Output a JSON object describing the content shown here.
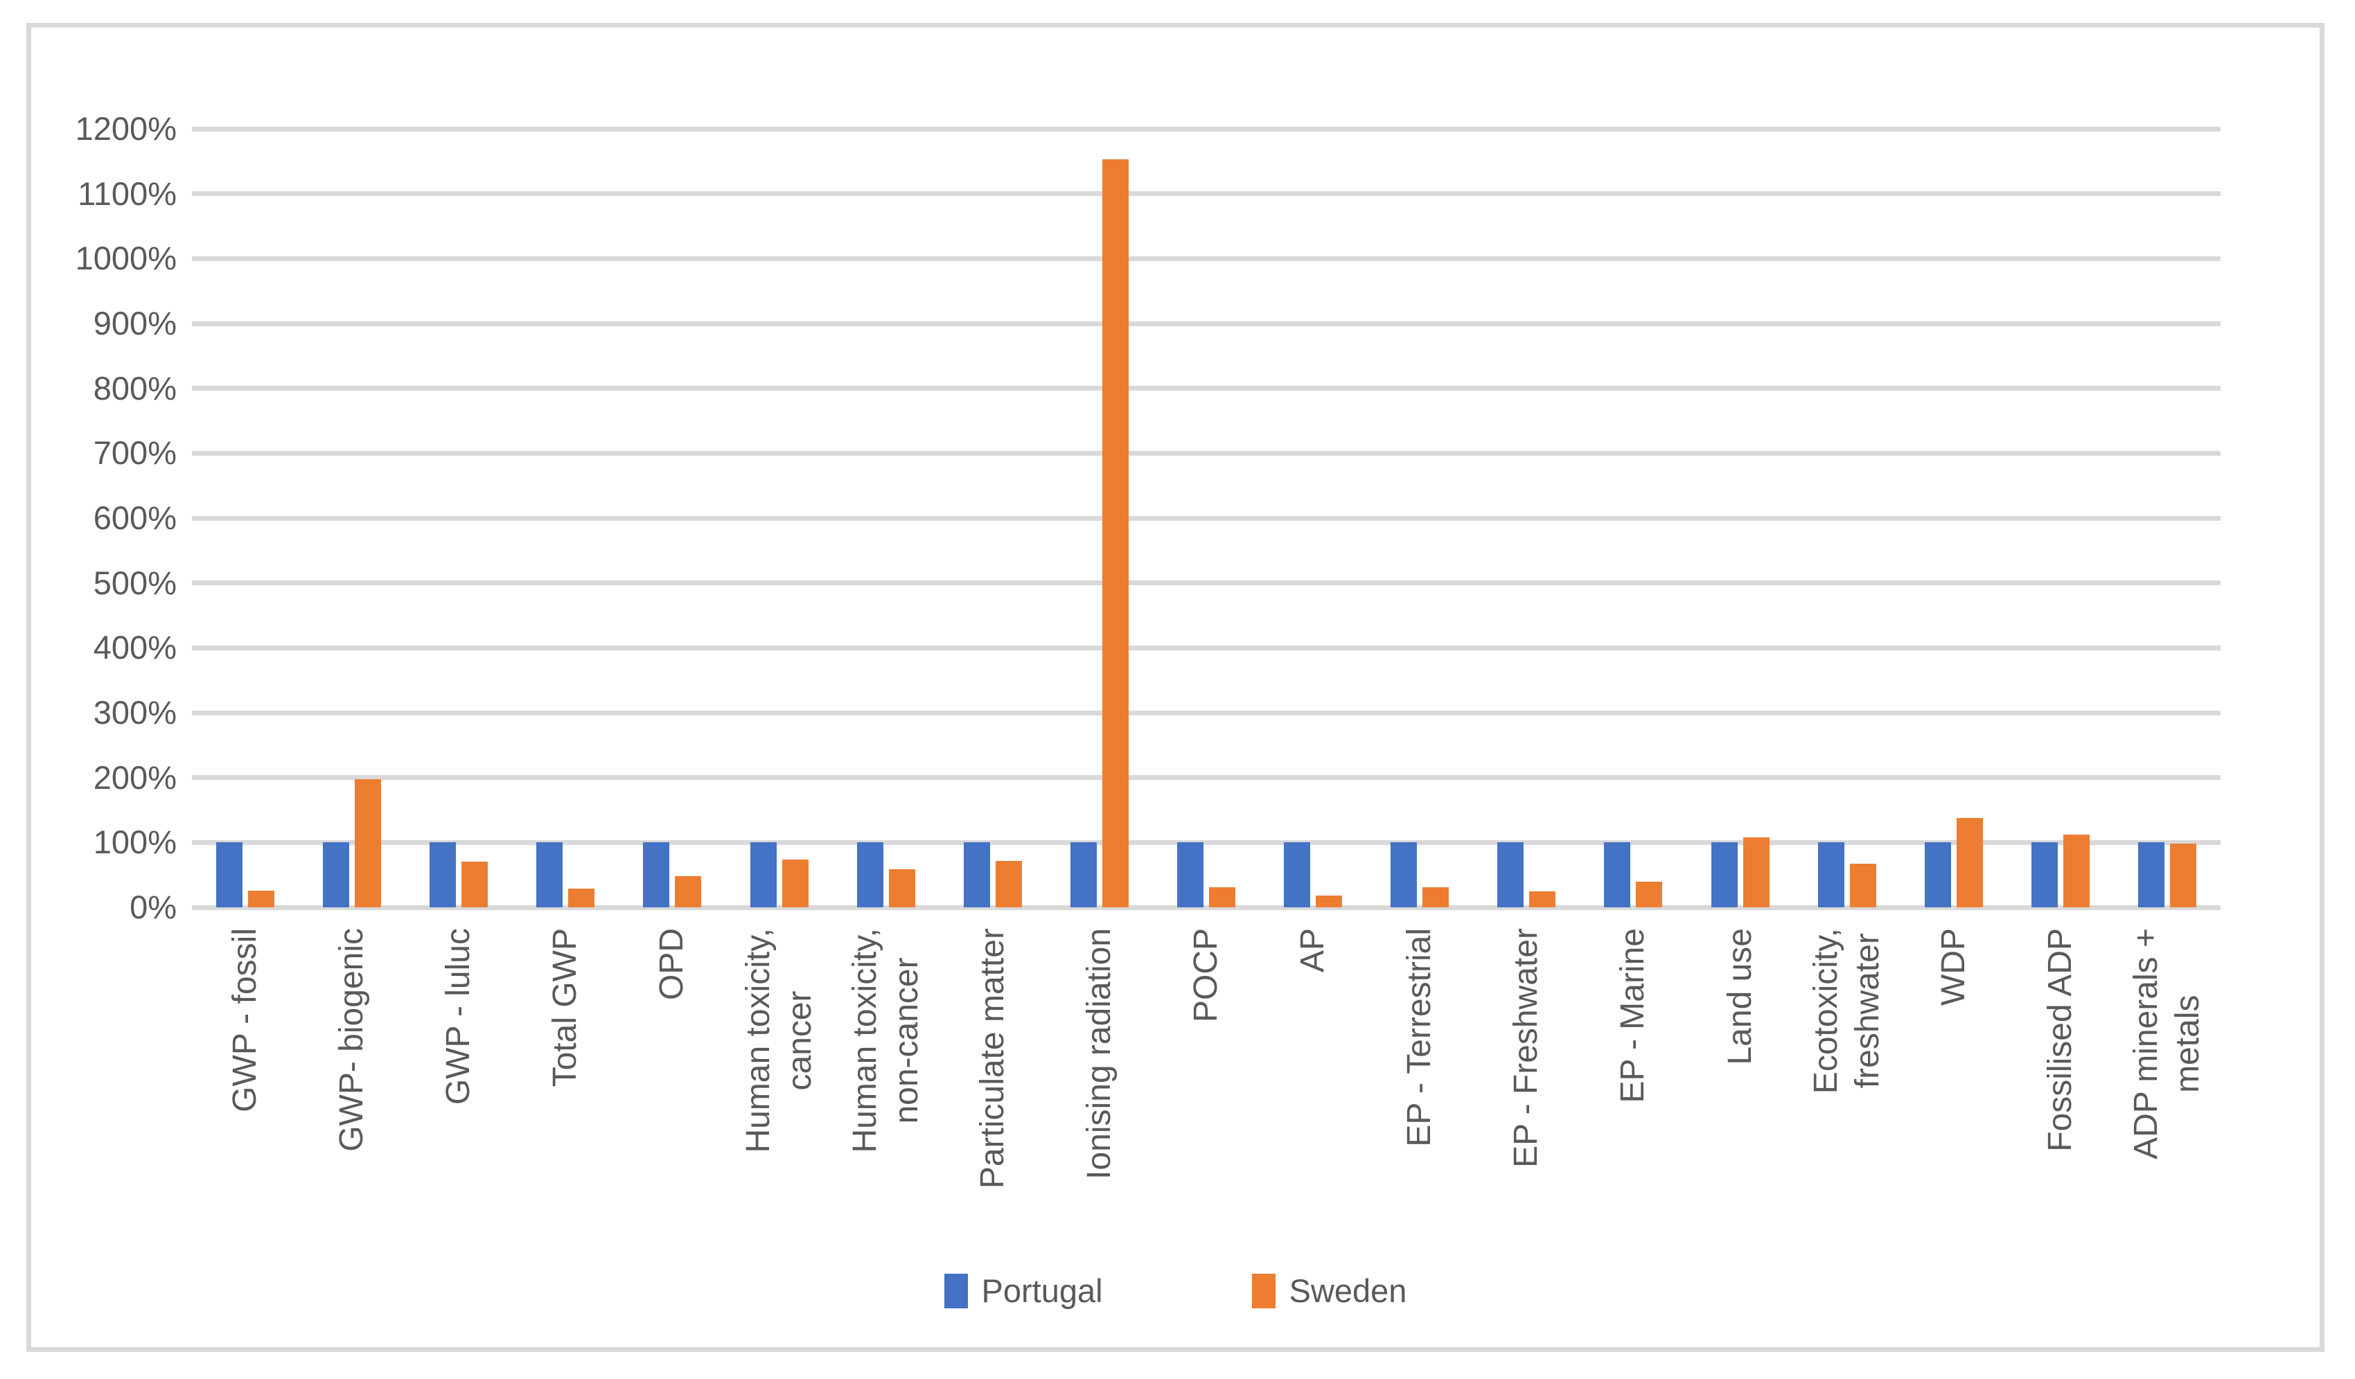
{
  "chart_data": {
    "type": "bar",
    "title": "",
    "xlabel": "",
    "ylabel": "",
    "ylim": [
      0,
      1200
    ],
    "ytick_step": 100,
    "ytick_suffix": "%",
    "grid": true,
    "legend_position": "bottom",
    "categories": [
      "GWP - fossil",
      "GWP- biogenic",
      "GWP - luluc",
      "Total GWP",
      "OPD",
      "Human toxicity,\ncancer",
      "Human toxicity,\nnon-cancer",
      "Particulate matter",
      "Ionising radiation",
      "POCP",
      "AP",
      "EP - Terrestrial",
      "EP - Freshwater",
      "EP - Marine",
      "Land use",
      "Ecotoxicity,\nfreshwater",
      "WDP",
      "Fossilised ADP",
      "ADP minerals +\nmetals"
    ],
    "series": [
      {
        "name": "Portugal",
        "color": "#4472C4",
        "values": [
          100,
          100,
          100,
          100,
          100,
          100,
          100,
          100,
          100,
          100,
          100,
          100,
          100,
          100,
          100,
          100,
          100,
          100,
          100
        ]
      },
      {
        "name": "Sweden",
        "color": "#ED7D31",
        "values": [
          26,
          198,
          70,
          29,
          48,
          74,
          59,
          71,
          1153,
          31,
          18,
          31,
          25,
          40,
          108,
          67,
          138,
          112,
          98
        ]
      }
    ]
  },
  "colors": {
    "gridline": "#D9D9D9",
    "frame_border": "#D9D9D9",
    "axis_text": "#595959",
    "background": "#FFFFFF"
  }
}
